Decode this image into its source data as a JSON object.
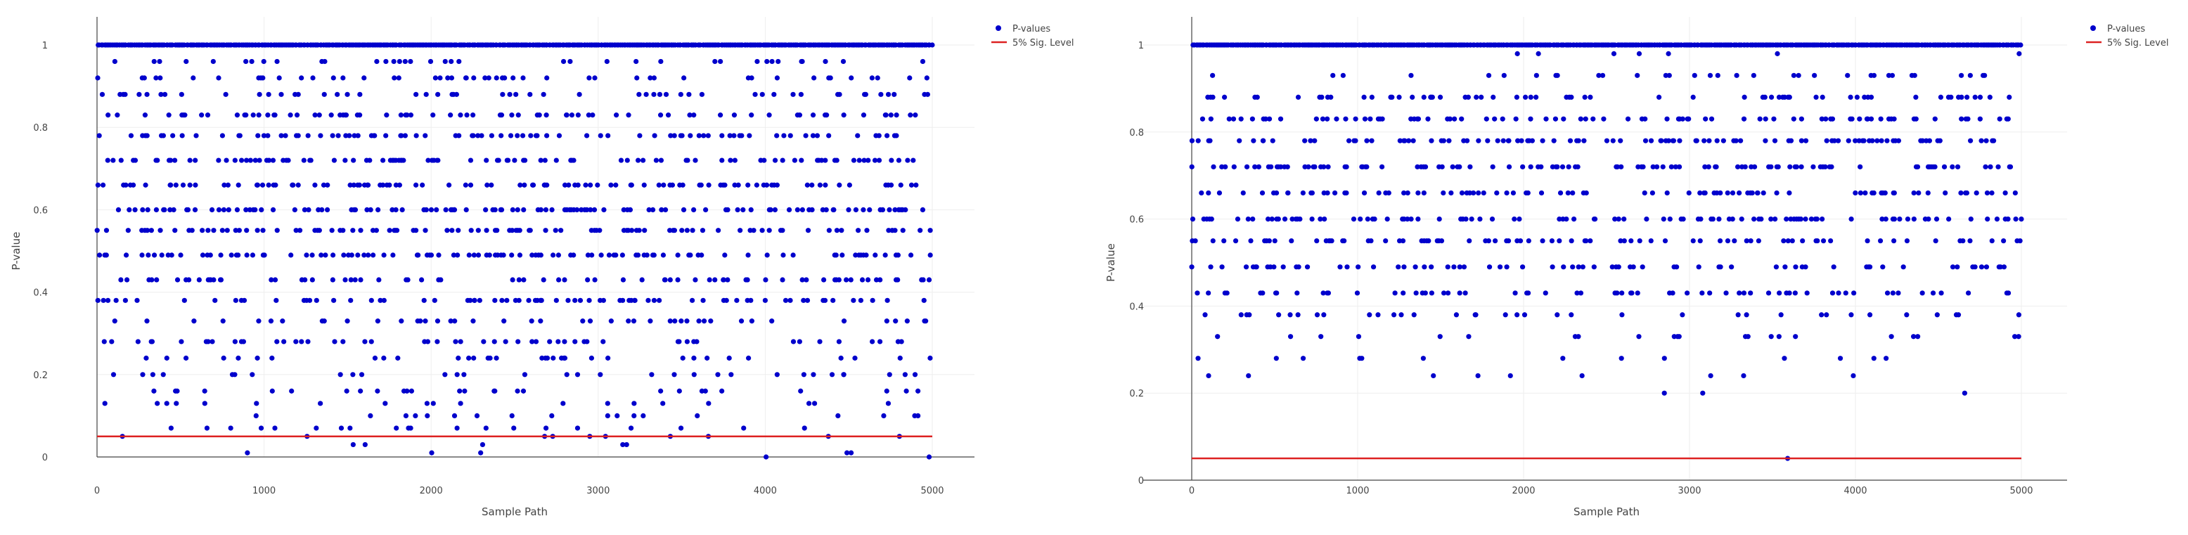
{
  "colors": {
    "points": "#0000cc",
    "threshold": "#dd2222",
    "grid": "#eeeeee",
    "axis": "#444444"
  },
  "chart_data": [
    {
      "type": "scatter",
      "title": "",
      "xlabel": "Sample Path",
      "ylabel": "P-value",
      "xlim": [
        0,
        5000
      ],
      "ylim": [
        0,
        1
      ],
      "x_ticks": [
        0,
        1000,
        2000,
        3000,
        4000,
        5000
      ],
      "y_ticks": [
        0,
        0.2,
        0.4,
        0.6,
        0.8,
        1
      ],
      "x_tick_labels": [
        "0",
        "1000",
        "2000",
        "3000",
        "4000",
        "5000"
      ],
      "y_tick_labels": [
        "0",
        "0.2",
        "0.4",
        "0.6",
        "0.8",
        "1"
      ],
      "grid": true,
      "legend_position": "top-right",
      "n_samples": 5000,
      "series": [
        {
          "name": "P-values",
          "kind": "markers",
          "color": "#0000cc",
          "value_levels": [
            1.0,
            0.96,
            0.92,
            0.88,
            0.83,
            0.78,
            0.72,
            0.66,
            0.6,
            0.55,
            0.49,
            0.43,
            0.38,
            0.33,
            0.28,
            0.24,
            0.2,
            0.16,
            0.13,
            0.1,
            0.07,
            0.05,
            0.03,
            0.01,
            0.0
          ],
          "level_density": [
            1.0,
            0.2,
            0.25,
            0.3,
            0.45,
            0.5,
            0.55,
            0.6,
            0.62,
            0.55,
            0.5,
            0.45,
            0.4,
            0.3,
            0.3,
            0.25,
            0.2,
            0.15,
            0.12,
            0.1,
            0.06,
            0.05,
            0.04,
            0.03,
            0.03
          ]
        },
        {
          "name": "5% Sig. Level",
          "kind": "line",
          "color": "#dd2222",
          "x": [
            0,
            5000
          ],
          "y": [
            0.05,
            0.05
          ]
        }
      ]
    },
    {
      "type": "scatter",
      "title": "",
      "xlabel": "Sample Path",
      "ylabel": "P-value",
      "xlim": [
        0,
        5000
      ],
      "ylim": [
        0,
        1
      ],
      "x_ticks": [
        0,
        1000,
        2000,
        3000,
        4000,
        5000
      ],
      "y_ticks": [
        0,
        0.2,
        0.4,
        0.6,
        0.8,
        1
      ],
      "x_tick_labels": [
        "0",
        "1000",
        "2000",
        "3000",
        "4000",
        "5000"
      ],
      "y_tick_labels": [
        "0",
        "0.2",
        "0.4",
        "0.6",
        "0.8",
        "1"
      ],
      "grid": true,
      "legend_position": "top-right",
      "n_samples": 5000,
      "series": [
        {
          "name": "P-values",
          "kind": "markers",
          "color": "#0000cc",
          "value_levels": [
            1.0,
            0.98,
            0.93,
            0.88,
            0.83,
            0.78,
            0.72,
            0.66,
            0.6,
            0.55,
            0.49,
            0.43,
            0.38,
            0.33,
            0.28,
            0.24,
            0.2,
            0.16,
            0.13,
            0.05
          ],
          "level_density": [
            1.0,
            0.02,
            0.15,
            0.3,
            0.45,
            0.55,
            0.6,
            0.62,
            0.6,
            0.5,
            0.4,
            0.3,
            0.2,
            0.1,
            0.06,
            0.05,
            0.02,
            0.01,
            0.005,
            0.002
          ]
        },
        {
          "name": "5% Sig. Level",
          "kind": "line",
          "color": "#dd2222",
          "x": [
            0,
            5000
          ],
          "y": [
            0.05,
            0.05
          ]
        }
      ]
    }
  ]
}
